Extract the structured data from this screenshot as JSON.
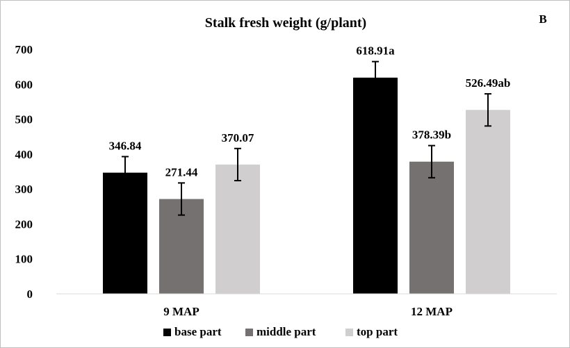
{
  "chart_data": {
    "type": "bar",
    "title": "Stalk fresh weight (g/plant)",
    "panel_label": "B",
    "xlabel": "",
    "ylabel": "",
    "categories": [
      "9 MAP",
      "12 MAP"
    ],
    "ylim": [
      0,
      700
    ],
    "yticks": [
      "0",
      "100",
      "200",
      "300",
      "400",
      "500",
      "600",
      "700"
    ],
    "grid": false,
    "legend_position": "bottom",
    "series": [
      {
        "name": "base part",
        "color": "#000000",
        "values": [
          346.84,
          618.91
        ],
        "errors": [
          46,
          46
        ],
        "labels": [
          "346.84",
          "618.91a"
        ]
      },
      {
        "name": "middle part",
        "color": "#767171",
        "values": [
          271.44,
          378.39
        ],
        "errors": [
          46,
          46
        ],
        "labels": [
          "271.44",
          "378.39b"
        ]
      },
      {
        "name": "top part",
        "color": "#d0cece",
        "values": [
          370.07,
          526.49
        ],
        "errors": [
          46,
          46
        ],
        "labels": [
          "370.07",
          "526.49ab"
        ]
      }
    ]
  }
}
